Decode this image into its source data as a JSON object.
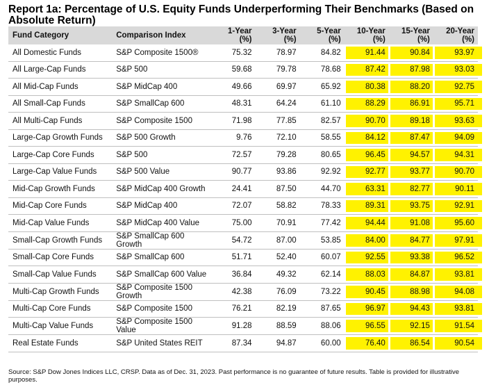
{
  "title": "Report 1a: Percentage of U.S. Equity Funds Underperforming Their Benchmarks (Based on Absolute Return)",
  "columns": {
    "fund_category": "Fund Category",
    "comparison_index": "Comparison Index",
    "y1": [
      "1-Year",
      "(%)"
    ],
    "y3": [
      "3-Year",
      "(%)"
    ],
    "y5": [
      "5-Year",
      "(%)"
    ],
    "y10": [
      "10-Year",
      "(%)"
    ],
    "y15": [
      "15-Year",
      "(%)"
    ],
    "y20": [
      "20-Year",
      "(%)"
    ]
  },
  "highlight_color": "#fff200",
  "highlighted_columns": [
    "10-Year",
    "15-Year",
    "20-Year"
  ],
  "rows": [
    {
      "category": "All Domestic Funds",
      "index": "S&P Composite 1500®",
      "values": [
        "75.32",
        "78.97",
        "84.82",
        "91.44",
        "90.84",
        "93.97"
      ]
    },
    {
      "category": "All Large-Cap Funds",
      "index": "S&P 500",
      "values": [
        "59.68",
        "79.78",
        "78.68",
        "87.42",
        "87.98",
        "93.03"
      ]
    },
    {
      "category": "All Mid-Cap Funds",
      "index": "S&P MidCap 400",
      "values": [
        "49.66",
        "69.97",
        "65.92",
        "80.38",
        "88.20",
        "92.75"
      ]
    },
    {
      "category": "All Small-Cap Funds",
      "index": "S&P SmallCap 600",
      "values": [
        "48.31",
        "64.24",
        "61.10",
        "88.29",
        "86.91",
        "95.71"
      ]
    },
    {
      "category": "All Multi-Cap Funds",
      "index": "S&P Composite 1500",
      "values": [
        "71.98",
        "77.85",
        "82.57",
        "90.70",
        "89.18",
        "93.63"
      ]
    },
    {
      "category": "Large-Cap Growth Funds",
      "index": "S&P 500 Growth",
      "values": [
        "9.76",
        "72.10",
        "58.55",
        "84.12",
        "87.47",
        "94.09"
      ]
    },
    {
      "category": "Large-Cap Core Funds",
      "index": "S&P 500",
      "values": [
        "72.57",
        "79.28",
        "80.65",
        "96.45",
        "94.57",
        "94.31"
      ]
    },
    {
      "category": "Large-Cap Value Funds",
      "index": "S&P 500 Value",
      "values": [
        "90.77",
        "93.86",
        "92.92",
        "92.77",
        "93.77",
        "90.70"
      ]
    },
    {
      "category": "Mid-Cap Growth Funds",
      "index": "S&P MidCap 400 Growth",
      "values": [
        "24.41",
        "87.50",
        "44.70",
        "63.31",
        "82.77",
        "90.11"
      ]
    },
    {
      "category": "Mid-Cap Core Funds",
      "index": "S&P MidCap 400",
      "values": [
        "72.07",
        "58.82",
        "78.33",
        "89.31",
        "93.75",
        "92.91"
      ]
    },
    {
      "category": "Mid-Cap Value Funds",
      "index": "S&P MidCap 400 Value",
      "values": [
        "75.00",
        "70.91",
        "77.42",
        "94.44",
        "91.08",
        "95.60"
      ]
    },
    {
      "category": "Small-Cap Growth Funds",
      "index": "S&P SmallCap 600 Growth",
      "values": [
        "54.72",
        "87.00",
        "53.85",
        "84.00",
        "84.77",
        "97.91"
      ]
    },
    {
      "category": "Small-Cap Core Funds",
      "index": "S&P SmallCap 600",
      "values": [
        "51.71",
        "52.40",
        "60.07",
        "92.55",
        "93.38",
        "96.52"
      ]
    },
    {
      "category": "Small-Cap Value Funds",
      "index": "S&P SmallCap 600 Value",
      "values": [
        "36.84",
        "49.32",
        "62.14",
        "88.03",
        "84.87",
        "93.81"
      ]
    },
    {
      "category": "Multi-Cap Growth Funds",
      "index": "S&P Composite 1500 Growth",
      "values": [
        "42.38",
        "76.09",
        "73.22",
        "90.45",
        "88.98",
        "94.08"
      ]
    },
    {
      "category": "Multi-Cap Core Funds",
      "index": "S&P Composite 1500",
      "values": [
        "76.21",
        "82.19",
        "87.65",
        "96.97",
        "94.43",
        "93.81"
      ]
    },
    {
      "category": "Multi-Cap Value Funds",
      "index": "S&P Composite 1500 Value",
      "values": [
        "91.28",
        "88.59",
        "88.06",
        "96.55",
        "92.15",
        "91.54"
      ]
    },
    {
      "category": "Real Estate Funds",
      "index": "S&P United States REIT",
      "values": [
        "87.34",
        "94.87",
        "60.00",
        "76.40",
        "86.54",
        "90.54"
      ]
    }
  ],
  "footnote": "Source: S&P Dow Jones Indices LLC, CRSP.  Data as of Dec. 31, 2023.  Past performance is no guarantee of future results.  Table is provided for illustrative purposes."
}
